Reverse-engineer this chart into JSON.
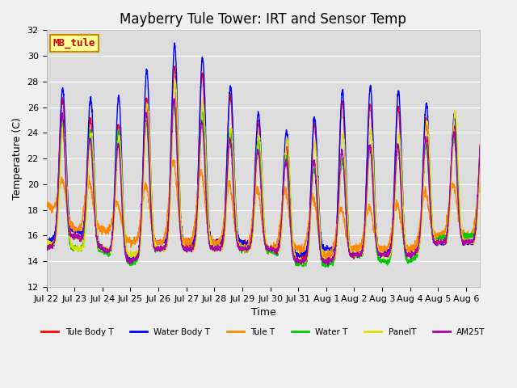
{
  "title": "Mayberry Tule Tower: IRT and Sensor Temp",
  "ylabel": "Temperature (C)",
  "xlabel": "Time",
  "ylim": [
    12,
    32
  ],
  "yticks": [
    12,
    14,
    16,
    18,
    20,
    22,
    24,
    26,
    28,
    30,
    32
  ],
  "xtick_labels": [
    "Jul 22",
    "Jul 23",
    "Jul 24",
    "Jul 25",
    "Jul 26",
    "Jul 27",
    "Jul 28",
    "Jul 29",
    "Jul 30",
    "Jul 31",
    "Aug 1",
    "Aug 2",
    "Aug 3",
    "Aug 4",
    "Aug 5",
    "Aug 6"
  ],
  "legend_entries": [
    "Tule Body T",
    "Water Body T",
    "Tule T",
    "Water T",
    "PanelT",
    "AM25T"
  ],
  "legend_colors": [
    "#ff0000",
    "#0000ff",
    "#ff8800",
    "#00cc00",
    "#dddd00",
    "#aa00aa"
  ],
  "series_colors": [
    "#ff0000",
    "#0000ff",
    "#ff8800",
    "#00cc00",
    "#dddd00",
    "#aa00aa"
  ],
  "watermark_text": "MB_tule",
  "watermark_color": "#cc0000",
  "watermark_bg": "#ffff99",
  "watermark_border": "#cc8800",
  "plot_bg_color": "#dcdcdc",
  "fig_bg_color": "#f0f0f0",
  "grid_color": "#ffffff",
  "title_fontsize": 12,
  "label_fontsize": 9,
  "tick_fontsize": 8
}
